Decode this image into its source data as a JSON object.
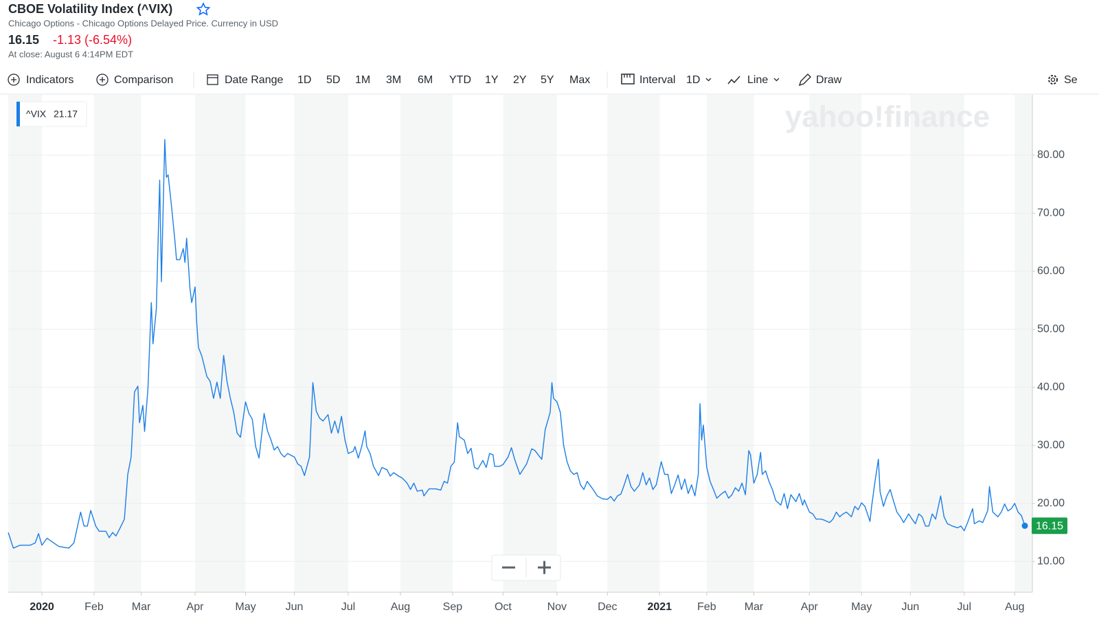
{
  "header": {
    "title": "CBOE Volatility Index (^VIX)",
    "subtitle": "Chicago Options - Chicago Options Delayed Price. Currency in USD",
    "price": "16.15",
    "change": "-1.13 (-6.54%)",
    "close_time": "At close: August 6 4:14PM EDT"
  },
  "toolbar": {
    "indicators": "Indicators",
    "comparison": "Comparison",
    "date_range": "Date Range",
    "ranges": [
      "1D",
      "5D",
      "1M",
      "3M",
      "6M",
      "YTD",
      "1Y",
      "2Y",
      "5Y",
      "Max"
    ],
    "interval": "Interval",
    "interval_value": "1D",
    "chart_type": "Line",
    "draw": "Draw",
    "settings": "Se"
  },
  "chart_data": {
    "type": "line",
    "watermark": "yahoo!finance",
    "legend_value": 21.17,
    "grid": true,
    "xlim": [
      0,
      604
    ],
    "xticks": [
      {
        "value": 20,
        "label": "2020"
      },
      {
        "value": 51,
        "label": "Feb"
      },
      {
        "value": 79,
        "label": "Mar"
      },
      {
        "value": 111,
        "label": "Apr"
      },
      {
        "value": 141,
        "label": "May"
      },
      {
        "value": 170,
        "label": "Jun"
      },
      {
        "value": 202,
        "label": "Jul"
      },
      {
        "value": 233,
        "label": "Aug"
      },
      {
        "value": 264,
        "label": "Sep"
      },
      {
        "value": 294,
        "label": "Oct"
      },
      {
        "value": 326,
        "label": "Nov"
      },
      {
        "value": 356,
        "label": "Dec"
      },
      {
        "value": 387,
        "label": "2021"
      },
      {
        "value": 415,
        "label": "Feb"
      },
      {
        "value": 443,
        "label": "Mar"
      },
      {
        "value": 476,
        "label": "Apr"
      },
      {
        "value": 507,
        "label": "May"
      },
      {
        "value": 536,
        "label": "Jun"
      },
      {
        "value": 568,
        "label": "Jul"
      },
      {
        "value": 598,
        "label": "Aug"
      }
    ],
    "ylim": [
      4.7,
      90.4
    ],
    "yticks": [
      {
        "value": 10,
        "label": "10.00"
      },
      {
        "value": 20,
        "label": "20.00"
      },
      {
        "value": 30,
        "label": "30.00"
      },
      {
        "value": 40,
        "label": "40.00"
      },
      {
        "value": 50,
        "label": "50.00"
      },
      {
        "value": 60,
        "label": "60.00"
      },
      {
        "value": 70,
        "label": "70.00"
      },
      {
        "value": 80,
        "label": "80.00"
      }
    ],
    "x": [
      0,
      3,
      7,
      13,
      16,
      18,
      20,
      23,
      27,
      30,
      36,
      39,
      43,
      45,
      47,
      49,
      52,
      54,
      58,
      60,
      62,
      64,
      66,
      69,
      71,
      73,
      75,
      77,
      78,
      80,
      81,
      83,
      85,
      86,
      88,
      90,
      91,
      93,
      94,
      95,
      97,
      99,
      100,
      102,
      104,
      105,
      106,
      108,
      109,
      111,
      112,
      113,
      115,
      118,
      120,
      122,
      124,
      126,
      128,
      130,
      132,
      134,
      136,
      138,
      141,
      143,
      145,
      147,
      149,
      152,
      154,
      156,
      158,
      160,
      162,
      164,
      166,
      170,
      172,
      174,
      176,
      179,
      181,
      183,
      185,
      187,
      190,
      192,
      194,
      196,
      198,
      200,
      202,
      205,
      206,
      208,
      210,
      212,
      213,
      215,
      217,
      220,
      222,
      225,
      227,
      229,
      232,
      234,
      237,
      239,
      241,
      243,
      246,
      247,
      250,
      254,
      257,
      259,
      261,
      263,
      265,
      267,
      268,
      271,
      273,
      275,
      277,
      279,
      282,
      284,
      286,
      288,
      289,
      292,
      294,
      297,
      299,
      301,
      304,
      306,
      308,
      311,
      313,
      315,
      317,
      319,
      322,
      323,
      324,
      326,
      328,
      330,
      332,
      334,
      336,
      338,
      340,
      342,
      344,
      347,
      350,
      353,
      356,
      358,
      360,
      362,
      364,
      366,
      368,
      370,
      372,
      375,
      377,
      379,
      381,
      383,
      385,
      388,
      390,
      392,
      394,
      396,
      398,
      400,
      402,
      404,
      406,
      408,
      410,
      411,
      412,
      413,
      415,
      417,
      419,
      421,
      424,
      426,
      428,
      430,
      432,
      434,
      436,
      438,
      440,
      441,
      443,
      445,
      447,
      448,
      450,
      452,
      454,
      456,
      459,
      461,
      463,
      465,
      468,
      470,
      472,
      473,
      476,
      478,
      480,
      483,
      485,
      488,
      490,
      492,
      494,
      496,
      498,
      501,
      503,
      505,
      507,
      509,
      512,
      513,
      515,
      517,
      518,
      520,
      522,
      524,
      526,
      528,
      530,
      532,
      535,
      537,
      539,
      541,
      543,
      545,
      547,
      549,
      551,
      554,
      556,
      558,
      561,
      564,
      566,
      568,
      570,
      573,
      574,
      577,
      579,
      582,
      583,
      585,
      588,
      590,
      592,
      594,
      596,
      598,
      600,
      602,
      604
    ],
    "series": [
      {
        "name": "^VIX",
        "color": "#1a7ee6",
        "values": [
          15.0,
          12.3,
          12.8,
          12.8,
          13.2,
          14.8,
          12.8,
          14.0,
          13.2,
          12.6,
          12.3,
          13.2,
          18.5,
          16.1,
          16.1,
          18.8,
          16.1,
          15.2,
          15.2,
          14.1,
          15.0,
          14.4,
          15.5,
          17.3,
          25.0,
          28.0,
          39.2,
          40.2,
          33.9,
          36.9,
          32.4,
          39.8,
          54.6,
          47.5,
          53.5,
          75.7,
          58.2,
          82.7,
          76.2,
          76.6,
          71.2,
          65.3,
          62.0,
          62.0,
          63.9,
          61.5,
          65.7,
          57.0,
          54.6,
          57.3,
          51.1,
          46.9,
          45.4,
          41.9,
          41.0,
          38.1,
          40.9,
          38.1,
          45.5,
          41.0,
          38.1,
          35.7,
          32.1,
          31.4,
          37.5,
          35.5,
          34.5,
          29.8,
          27.8,
          35.5,
          32.5,
          31.0,
          29.2,
          29.8,
          28.6,
          28.0,
          28.6,
          28.0,
          26.8,
          26.4,
          24.8,
          28.0,
          40.8,
          35.9,
          34.7,
          34.2,
          35.3,
          32.1,
          34.2,
          32.1,
          35.0,
          31.0,
          28.6,
          29.0,
          29.8,
          27.8,
          29.8,
          32.5,
          29.8,
          28.6,
          26.4,
          24.8,
          26.2,
          25.8,
          24.7,
          25.3,
          24.7,
          24.4,
          23.5,
          22.4,
          23.5,
          22.1,
          22.3,
          21.3,
          22.5,
          22.5,
          22.3,
          23.8,
          23.5,
          26.4,
          27.1,
          33.9,
          31.5,
          30.9,
          28.6,
          29.5,
          26.2,
          25.9,
          27.4,
          26.2,
          28.6,
          28.4,
          26.4,
          26.4,
          26.7,
          28.0,
          29.6,
          27.5,
          25.0,
          25.9,
          26.8,
          29.4,
          29.1,
          28.3,
          27.6,
          32.7,
          35.7,
          40.8,
          38.1,
          37.5,
          35.7,
          30.0,
          27.2,
          25.6,
          25.0,
          25.3,
          23.2,
          22.4,
          23.8,
          22.6,
          21.3,
          20.8,
          20.7,
          21.2,
          20.4,
          21.3,
          21.6,
          23.2,
          25.0,
          22.9,
          22.1,
          23.2,
          25.3,
          23.2,
          24.4,
          22.4,
          23.2,
          27.2,
          25.0,
          25.0,
          21.7,
          23.2,
          24.9,
          22.4,
          24.2,
          21.7,
          23.2,
          21.3,
          25.0,
          37.2,
          30.9,
          33.5,
          26.2,
          23.8,
          22.4,
          20.9,
          21.7,
          22.1,
          20.9,
          21.5,
          22.7,
          22.1,
          23.5,
          21.5,
          29.1,
          28.4,
          23.5,
          25.0,
          28.8,
          25.0,
          25.6,
          23.8,
          22.4,
          20.5,
          19.7,
          21.7,
          19.1,
          21.5,
          20.3,
          21.7,
          19.7,
          20.6,
          18.5,
          18.2,
          17.3,
          17.3,
          17.1,
          16.7,
          17.3,
          18.5,
          17.7,
          18.2,
          18.5,
          17.7,
          19.5,
          18.9,
          20.1,
          19.5,
          16.9,
          19.5,
          23.8,
          27.6,
          22.0,
          19.5,
          21.3,
          22.4,
          20.4,
          18.5,
          17.7,
          16.7,
          18.2,
          17.3,
          16.5,
          18.2,
          17.7,
          16.1,
          16.1,
          18.2,
          17.3,
          21.3,
          17.7,
          16.5,
          16.1,
          15.8,
          16.1,
          15.3,
          16.7,
          19.1,
          16.5,
          17.0,
          16.7,
          18.8,
          22.9,
          18.5,
          17.7,
          18.5,
          19.9,
          18.7,
          19.1,
          20.0,
          18.5,
          17.9,
          16.15
        ]
      }
    ]
  }
}
